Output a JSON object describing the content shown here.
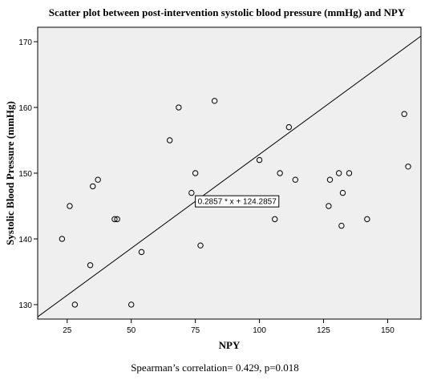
{
  "chart_data": {
    "type": "scatter",
    "title": "Scatter plot between post-intervention systolic blood pressure (mmHg) and NPY",
    "xlabel": "NPY",
    "ylabel": "Systolic Blood Pressure (mmHg)",
    "xlim": [
      13.5,
      163
    ],
    "ylim": [
      127.8,
      172.2
    ],
    "x_ticks": [
      25,
      50,
      75,
      100,
      125,
      150
    ],
    "y_ticks": [
      130,
      140,
      150,
      160,
      170
    ],
    "grid": false,
    "background": "#efefef",
    "marker_color": "#000000",
    "line_color": "#000000",
    "points": [
      {
        "x": 23,
        "y": 140
      },
      {
        "x": 26,
        "y": 145
      },
      {
        "x": 28,
        "y": 130
      },
      {
        "x": 34,
        "y": 136
      },
      {
        "x": 35,
        "y": 148
      },
      {
        "x": 37,
        "y": 149
      },
      {
        "x": 43.5,
        "y": 143
      },
      {
        "x": 44.5,
        "y": 143
      },
      {
        "x": 50,
        "y": 130
      },
      {
        "x": 54,
        "y": 138
      },
      {
        "x": 65,
        "y": 155
      },
      {
        "x": 68.5,
        "y": 160
      },
      {
        "x": 73.5,
        "y": 147
      },
      {
        "x": 75,
        "y": 150
      },
      {
        "x": 77,
        "y": 139
      },
      {
        "x": 82.5,
        "y": 161
      },
      {
        "x": 100,
        "y": 152
      },
      {
        "x": 106,
        "y": 143
      },
      {
        "x": 108,
        "y": 150
      },
      {
        "x": 111.5,
        "y": 157
      },
      {
        "x": 114,
        "y": 149
      },
      {
        "x": 127,
        "y": 145
      },
      {
        "x": 127.5,
        "y": 149
      },
      {
        "x": 131,
        "y": 150
      },
      {
        "x": 132,
        "y": 142
      },
      {
        "x": 132.5,
        "y": 147
      },
      {
        "x": 135,
        "y": 150
      },
      {
        "x": 142,
        "y": 143
      },
      {
        "x": 156.5,
        "y": 159
      },
      {
        "x": 158,
        "y": 151
      }
    ],
    "fit_line": {
      "slope": 0.2857,
      "intercept": 124.2857,
      "label": "0.2857 * x + 124.2857",
      "label_anchor_x": 75
    }
  },
  "footer": "Spearman’s correlation= 0.429, p=0.018"
}
